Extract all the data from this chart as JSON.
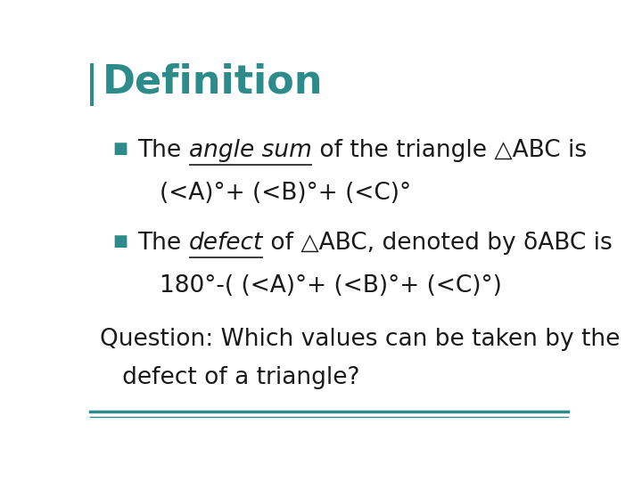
{
  "title": "Definition",
  "title_color": "#2E8B8B",
  "title_fontsize": 32,
  "background_color": "#FFFFFF",
  "left_bar_color": "#2E8B8B",
  "bottom_line_color": "#2E8B8B",
  "bullet_color": "#2E8B8B",
  "bullet1_pre": "The ",
  "bullet1_underline_italic": "angle sum",
  "bullet1_post": " of the triangle △ABC is",
  "bullet1_line2": "(<A)°+ (<B)°+ (<C)°",
  "bullet2_pre": "The ",
  "bullet2_underline_italic": "defect",
  "bullet2_post": " of △ABC, denoted by δABC is",
  "bullet2_line2": "180°-( (<A)°+ (<B)°+ (<C)°)",
  "question_line1": "Question: Which values can be taken by the",
  "question_line2": "   defect of a triangle?",
  "text_color": "#1a1a1a",
  "text_fontsize": 19,
  "bullet_fontsize": 13
}
